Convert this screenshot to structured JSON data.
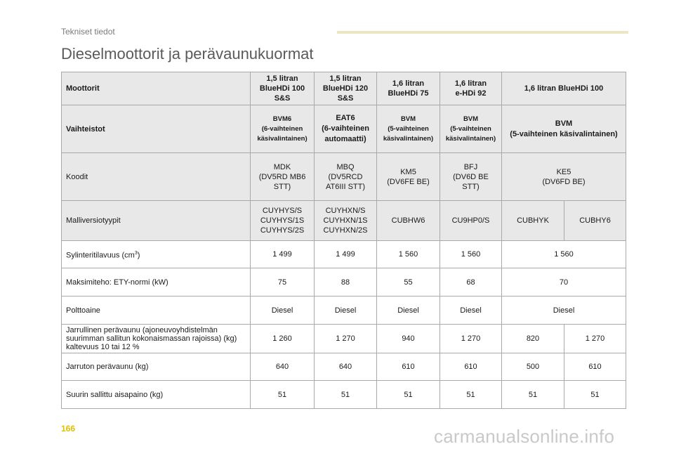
{
  "header": {
    "section": "Tekniset tiedot",
    "title": "Dieselmoottorit ja perävaunukuormat"
  },
  "table": {
    "rows": {
      "engines": {
        "label": "Moottorit",
        "cells": [
          "1,5 litran\nBlueHDi 100\nS&S",
          "1,5 litran\nBlueHDi 120\nS&S",
          "1,6 litran\nBlueHDi 75",
          "1,6 litran\ne-HDi 92",
          "1,6 litran BlueHDi 100"
        ]
      },
      "gearboxes": {
        "label": "Vaihteistot",
        "cells": [
          "BVM6\n(6-vaihteinen\nkäsivalintainen)",
          "EAT6\n(6-vaihteinen\nautomaatti)",
          "BVM\n(5-vaihteinen\nkäsivalintainen)",
          "BVM\n(5-vaihteinen\nkäsivalintainen)",
          "BVM\n(5-vaihteinen käsivalintainen)"
        ]
      },
      "codes": {
        "label": "Koodit",
        "cells": [
          "MDK\n(DV5RD MB6\nSTT)",
          "MBQ\n(DV5RCD\nAT6III STT)",
          "KM5\n(DV6FE BE)",
          "BFJ\n(DV6D BE\nSTT)",
          "KE5\n(DV6FD BE)"
        ]
      },
      "model_variants": {
        "label": "Malliversiotyypit",
        "cells": [
          "CUYHYS/S\nCUYHYS/1S\nCUYHYS/2S",
          "CUYHXN/S\nCUYHXN/1S\nCUYHXN/2S",
          "CUBHW6",
          "CU9HP0/S",
          "CUBHYK",
          "CUBHY6"
        ]
      },
      "displacement": {
        "label": "Sylinteritilavuus (cm",
        "label_sup": "3",
        "label_end": ")",
        "cells": [
          "1 499",
          "1 499",
          "1 560",
          "1 560",
          "1 560"
        ]
      },
      "max_power": {
        "label": "Maksimiteho: ETY-normi (kW)",
        "cells": [
          "75",
          "88",
          "55",
          "68",
          "70"
        ]
      },
      "fuel": {
        "label": "Polttoaine",
        "cells": [
          "Diesel",
          "Diesel",
          "Diesel",
          "Diesel",
          "Diesel"
        ]
      },
      "braked_trailer": {
        "label": "Jarrullinen perävaunu (ajoneuvoyhdistelmän\nsuurimman sallitun kokonaismassan rajoissa) (kg)\nkaltevuus 10 tai 12 %",
        "cells": [
          "1 260",
          "1 270",
          "940",
          "1 270",
          "820",
          "1 270"
        ]
      },
      "unbraked_trailer": {
        "label": "Jarruton perävaunu (kg)",
        "cells": [
          "640",
          "640",
          "610",
          "610",
          "500",
          "610"
        ]
      },
      "nose_weight": {
        "label": "Suurin sallittu aisapaino (kg)",
        "cells": [
          "51",
          "51",
          "51",
          "51",
          "51",
          "51"
        ]
      }
    }
  },
  "footer": {
    "page_number": "166",
    "watermark": "carmanualsonline.info"
  },
  "colors": {
    "header_shade": "#e8e8e8",
    "border": "#a9a9a9",
    "page_number": "#e0c000",
    "accent_bar": "#ebe6c3"
  }
}
